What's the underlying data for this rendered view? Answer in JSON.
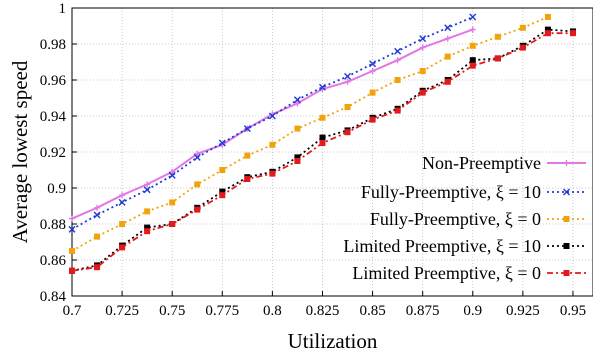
{
  "chart_data": {
    "type": "line",
    "title": "",
    "xlabel": "Utilization",
    "ylabel": "Average lowest speed",
    "xlim": [
      0.7,
      0.96
    ],
    "ylim": [
      0.84,
      1.0
    ],
    "xticks": [
      "0.7",
      "0.725",
      "0.75",
      "0.775",
      "0.8",
      "0.825",
      "0.85",
      "0.875",
      "0.9",
      "0.925",
      "0.95"
    ],
    "yticks": [
      "0.84",
      "0.86",
      "0.88",
      "0.9",
      "0.92",
      "0.94",
      "0.96",
      "0.98",
      "1"
    ],
    "grid": true,
    "legend_position": "bottom-right",
    "series": [
      {
        "name": "Non-Preemptive",
        "color": "#e377e3",
        "marker": "plus",
        "dash": "solid",
        "x": [
          0.7,
          0.7125,
          0.725,
          0.7375,
          0.75,
          0.7625,
          0.775,
          0.7875,
          0.8,
          0.8125,
          0.825,
          0.8375,
          0.85,
          0.8625,
          0.875,
          0.8875,
          0.9
        ],
        "y": [
          0.883,
          0.889,
          0.896,
          0.902,
          0.909,
          0.919,
          0.924,
          0.933,
          0.941,
          0.947,
          0.955,
          0.959,
          0.965,
          0.971,
          0.978,
          0.983,
          0.988
        ]
      },
      {
        "name": "Fully-Preemptive, ξ = 10",
        "color": "#1f3ad6",
        "marker": "x",
        "dash": "dot",
        "x": [
          0.7,
          0.7125,
          0.725,
          0.7375,
          0.75,
          0.7625,
          0.775,
          0.7875,
          0.8,
          0.8125,
          0.825,
          0.8375,
          0.85,
          0.8625,
          0.875,
          0.8875,
          0.9
        ],
        "y": [
          0.877,
          0.885,
          0.892,
          0.899,
          0.907,
          0.917,
          0.925,
          0.933,
          0.94,
          0.949,
          0.956,
          0.962,
          0.969,
          0.976,
          0.983,
          0.989,
          0.995
        ]
      },
      {
        "name": "Fully-Preemptive, ξ = 0",
        "color": "#f0a30a",
        "marker": "square",
        "dash": "dot",
        "x": [
          0.7,
          0.7125,
          0.725,
          0.7375,
          0.75,
          0.7625,
          0.775,
          0.7875,
          0.8,
          0.8125,
          0.825,
          0.8375,
          0.85,
          0.8625,
          0.875,
          0.8875,
          0.9,
          0.9125,
          0.925,
          0.9375
        ],
        "y": [
          0.865,
          0.873,
          0.88,
          0.887,
          0.892,
          0.902,
          0.91,
          0.918,
          0.924,
          0.933,
          0.939,
          0.945,
          0.953,
          0.96,
          0.965,
          0.973,
          0.979,
          0.984,
          0.989,
          0.995
        ]
      },
      {
        "name": "Limited Preemptive, ξ = 10",
        "color": "#000000",
        "marker": "square",
        "dash": "dot",
        "x": [
          0.7,
          0.7125,
          0.725,
          0.7375,
          0.75,
          0.7625,
          0.775,
          0.7875,
          0.8,
          0.8125,
          0.825,
          0.8375,
          0.85,
          0.8625,
          0.875,
          0.8875,
          0.9,
          0.9125,
          0.925,
          0.9375,
          0.95,
          0.9625
        ],
        "y": [
          0.854,
          0.857,
          0.868,
          0.878,
          0.88,
          0.889,
          0.898,
          0.906,
          0.909,
          0.917,
          0.928,
          0.932,
          0.939,
          0.944,
          0.954,
          0.96,
          0.971,
          0.972,
          0.979,
          0.988,
          0.987,
          0.988
        ]
      },
      {
        "name": "Limited Preemptive, ξ = 0",
        "color": "#e31a1c",
        "marker": "square",
        "dash": "dashdot",
        "x": [
          0.7,
          0.7125,
          0.725,
          0.7375,
          0.75,
          0.7625,
          0.775,
          0.7875,
          0.8,
          0.8125,
          0.825,
          0.8375,
          0.85,
          0.8625,
          0.875,
          0.8875,
          0.9,
          0.9125,
          0.925,
          0.9375,
          0.95,
          0.9625
        ],
        "y": [
          0.854,
          0.856,
          0.867,
          0.876,
          0.88,
          0.888,
          0.896,
          0.905,
          0.908,
          0.915,
          0.925,
          0.931,
          0.938,
          0.943,
          0.953,
          0.959,
          0.968,
          0.972,
          0.978,
          0.986,
          0.986,
          0.988
        ]
      }
    ]
  }
}
